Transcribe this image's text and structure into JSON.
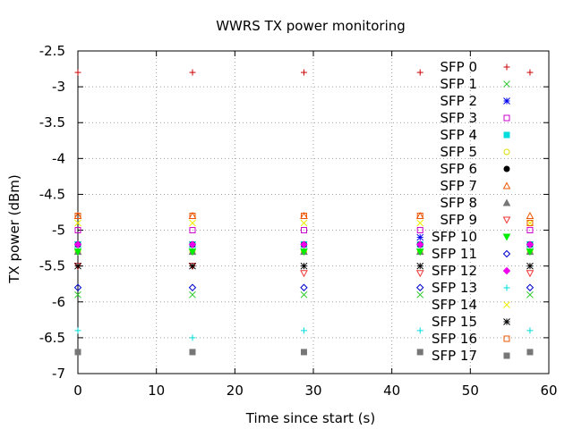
{
  "chart_data": {
    "type": "scatter",
    "title": "WWRS TX power monitoring",
    "xlabel": "Time since start (s)",
    "ylabel": "TX power (dBm)",
    "xlim": [
      0,
      60
    ],
    "ylim": [
      -7,
      -2.5
    ],
    "xticks": [
      0,
      10,
      20,
      30,
      40,
      50,
      60
    ],
    "yticks": [
      -7,
      -6.5,
      -6,
      -5.5,
      -5,
      -4.5,
      -4,
      -3.5,
      -3,
      -2.5
    ],
    "grid": true,
    "legend_position": "top-right",
    "x": [
      0,
      14.6,
      28.8,
      43.6,
      57.6
    ],
    "series": [
      {
        "name": "SFP 0",
        "marker": "plus",
        "color": "#cc0000",
        "values": [
          -2.8,
          -2.8,
          -2.8,
          -2.8,
          -2.8
        ]
      },
      {
        "name": "SFP 1",
        "marker": "cross",
        "color": "#33cc33",
        "values": [
          -5.9,
          -5.9,
          -5.9,
          -5.9,
          -5.9
        ]
      },
      {
        "name": "SFP 2",
        "marker": "star",
        "color": "#0000ee",
        "values": [
          -5.2,
          -5.2,
          -5.2,
          -5.1,
          -5.2
        ]
      },
      {
        "name": "SFP 3",
        "marker": "square-open",
        "color": "#cc00cc",
        "values": [
          -5.0,
          -5.0,
          -5.0,
          -5.0,
          -5.0
        ]
      },
      {
        "name": "SFP 4",
        "marker": "square-filled",
        "color": "#00dddd",
        "values": [
          -5.2,
          -5.2,
          -5.2,
          -5.2,
          -5.2
        ]
      },
      {
        "name": "SFP 5",
        "marker": "circle-open",
        "color": "#dddd00",
        "values": [
          -5.3,
          -5.3,
          -5.3,
          -5.3,
          -5.3
        ]
      },
      {
        "name": "SFP 6",
        "marker": "circle-filled",
        "color": "#000000",
        "values": [
          -5.2,
          -5.2,
          -5.2,
          -5.2,
          -5.2
        ]
      },
      {
        "name": "SFP 7",
        "marker": "triangle-up-open",
        "color": "#ee5500",
        "values": [
          -4.8,
          -4.8,
          -4.8,
          -4.8,
          -4.8
        ]
      },
      {
        "name": "SFP 8",
        "marker": "triangle-up-filled",
        "color": "#777777",
        "values": [
          -5.3,
          -5.3,
          -5.3,
          -5.3,
          -5.3
        ]
      },
      {
        "name": "SFP 9",
        "marker": "triangle-down-open",
        "color": "#ee3333",
        "values": [
          -5.5,
          -5.5,
          -5.6,
          -5.6,
          -5.6
        ]
      },
      {
        "name": "SFP 10",
        "marker": "triangle-down-filled",
        "color": "#00ee00",
        "values": [
          -5.3,
          -5.3,
          -5.3,
          -5.3,
          -5.3
        ]
      },
      {
        "name": "SFP 11",
        "marker": "diamond-open",
        "color": "#0000cc",
        "values": [
          -5.8,
          -5.8,
          -5.8,
          -5.8,
          -5.8
        ]
      },
      {
        "name": "SFP 12",
        "marker": "diamond-filled",
        "color": "#ee00ee",
        "values": [
          -5.2,
          -5.2,
          -5.2,
          -5.2,
          -5.2
        ]
      },
      {
        "name": "SFP 13",
        "marker": "plus",
        "color": "#00dddd",
        "values": [
          -6.4,
          -6.5,
          -6.4,
          -6.4,
          -6.4
        ]
      },
      {
        "name": "SFP 14",
        "marker": "cross",
        "color": "#eeee00",
        "values": [
          -4.9,
          -4.9,
          -4.9,
          -4.9,
          -4.9
        ]
      },
      {
        "name": "SFP 15",
        "marker": "star",
        "color": "#000000",
        "values": [
          -5.5,
          -5.5,
          -5.5,
          -5.5,
          -5.5
        ]
      },
      {
        "name": "SFP 16",
        "marker": "square-open",
        "color": "#ee5500",
        "values": [
          -4.8,
          -4.8,
          -4.8,
          -4.8,
          -4.9
        ]
      },
      {
        "name": "SFP 17",
        "marker": "square-filled",
        "color": "#777777",
        "values": [
          -6.7,
          -6.7,
          -6.7,
          -6.7,
          -6.7
        ]
      }
    ]
  }
}
